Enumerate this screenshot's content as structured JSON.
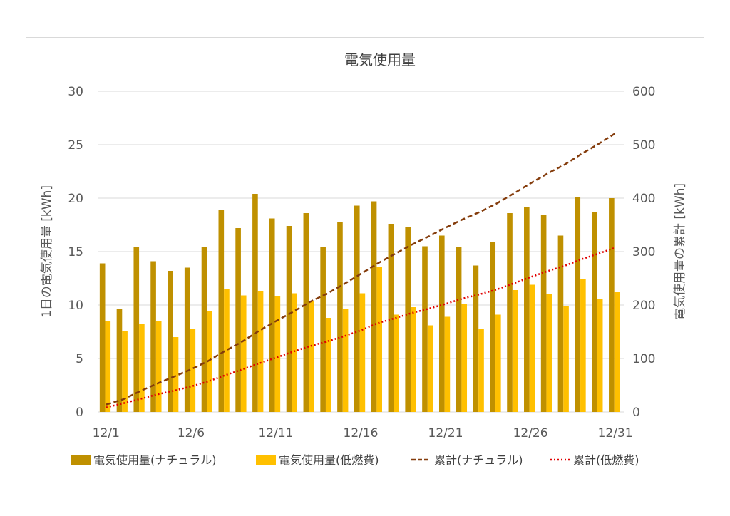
{
  "chart_data": {
    "type": "bar",
    "title": "電気使用量",
    "ylabel": "1日の電気使用量 [kWh]",
    "y2label": "電気使用量の累計 [kWh]",
    "ylim": [
      0,
      30
    ],
    "y2lim": [
      0,
      600
    ],
    "yticks": [
      "0",
      "5",
      "10",
      "15",
      "20",
      "25",
      "30"
    ],
    "y2ticks": [
      "0",
      "100",
      "200",
      "300",
      "400",
      "500",
      "600"
    ],
    "x": [
      "12/1",
      "12/2",
      "12/3",
      "12/4",
      "12/5",
      "12/6",
      "12/7",
      "12/8",
      "12/9",
      "12/10",
      "12/11",
      "12/12",
      "12/13",
      "12/14",
      "12/15",
      "12/16",
      "12/17",
      "12/18",
      "12/19",
      "12/20",
      "12/21",
      "12/22",
      "12/23",
      "12/24",
      "12/25",
      "12/26",
      "12/27",
      "12/28",
      "12/29",
      "12/30",
      "12/31"
    ],
    "xticks": [
      "12/1",
      "12/6",
      "12/11",
      "12/16",
      "12/21",
      "12/26",
      "12/31"
    ],
    "grid": true,
    "legend_position": "bottom",
    "series": [
      {
        "name": "電気使用量(ナチュラル)",
        "type": "bar",
        "axis": "left",
        "color": "#BF9000",
        "values": [
          13.9,
          9.6,
          15.4,
          14.1,
          13.2,
          13.5,
          15.4,
          18.9,
          17.2,
          20.4,
          18.1,
          17.4,
          18.6,
          15.4,
          17.8,
          19.3,
          19.7,
          17.6,
          17.3,
          15.5,
          16.5,
          15.4,
          13.7,
          15.9,
          18.6,
          19.2,
          18.4,
          16.5,
          20.1,
          18.7,
          20.0
        ]
      },
      {
        "name": "電気使用量(低燃費)",
        "type": "bar",
        "axis": "left",
        "color": "#FFC000",
        "values": [
          8.5,
          7.6,
          8.2,
          8.5,
          7.0,
          7.8,
          9.4,
          11.5,
          10.9,
          11.3,
          10.8,
          11.1,
          10.4,
          8.8,
          9.6,
          11.1,
          13.6,
          9.1,
          9.8,
          8.1,
          8.9,
          10.1,
          7.8,
          9.1,
          11.4,
          11.9,
          11.0,
          9.9,
          12.4,
          10.6,
          11.2
        ]
      },
      {
        "name": "累計(ナチュラル)",
        "type": "line",
        "axis": "right",
        "color": "#843C0C",
        "style": "dashed",
        "values": [
          13.9,
          23.5,
          38.9,
          53.0,
          66.2,
          79.7,
          95.1,
          114.0,
          131.2,
          151.6,
          169.7,
          187.1,
          205.7,
          221.1,
          238.9,
          258.2,
          277.9,
          295.5,
          312.8,
          328.3,
          344.8,
          360.2,
          373.9,
          389.8,
          408.4,
          427.6,
          446.0,
          462.5,
          482.6,
          501.3,
          521.3
        ]
      },
      {
        "name": "累計(低燃費)",
        "type": "line",
        "axis": "right",
        "color": "#E00000",
        "style": "dotted",
        "values": [
          8.5,
          16.1,
          24.3,
          32.8,
          39.8,
          47.6,
          57.0,
          68.5,
          79.4,
          90.7,
          101.5,
          112.6,
          123.0,
          131.8,
          141.4,
          152.5,
          166.1,
          175.2,
          185.0,
          193.1,
          202.0,
          212.1,
          219.9,
          229.0,
          240.4,
          252.3,
          263.3,
          273.2,
          285.6,
          296.2,
          307.4
        ]
      }
    ]
  }
}
